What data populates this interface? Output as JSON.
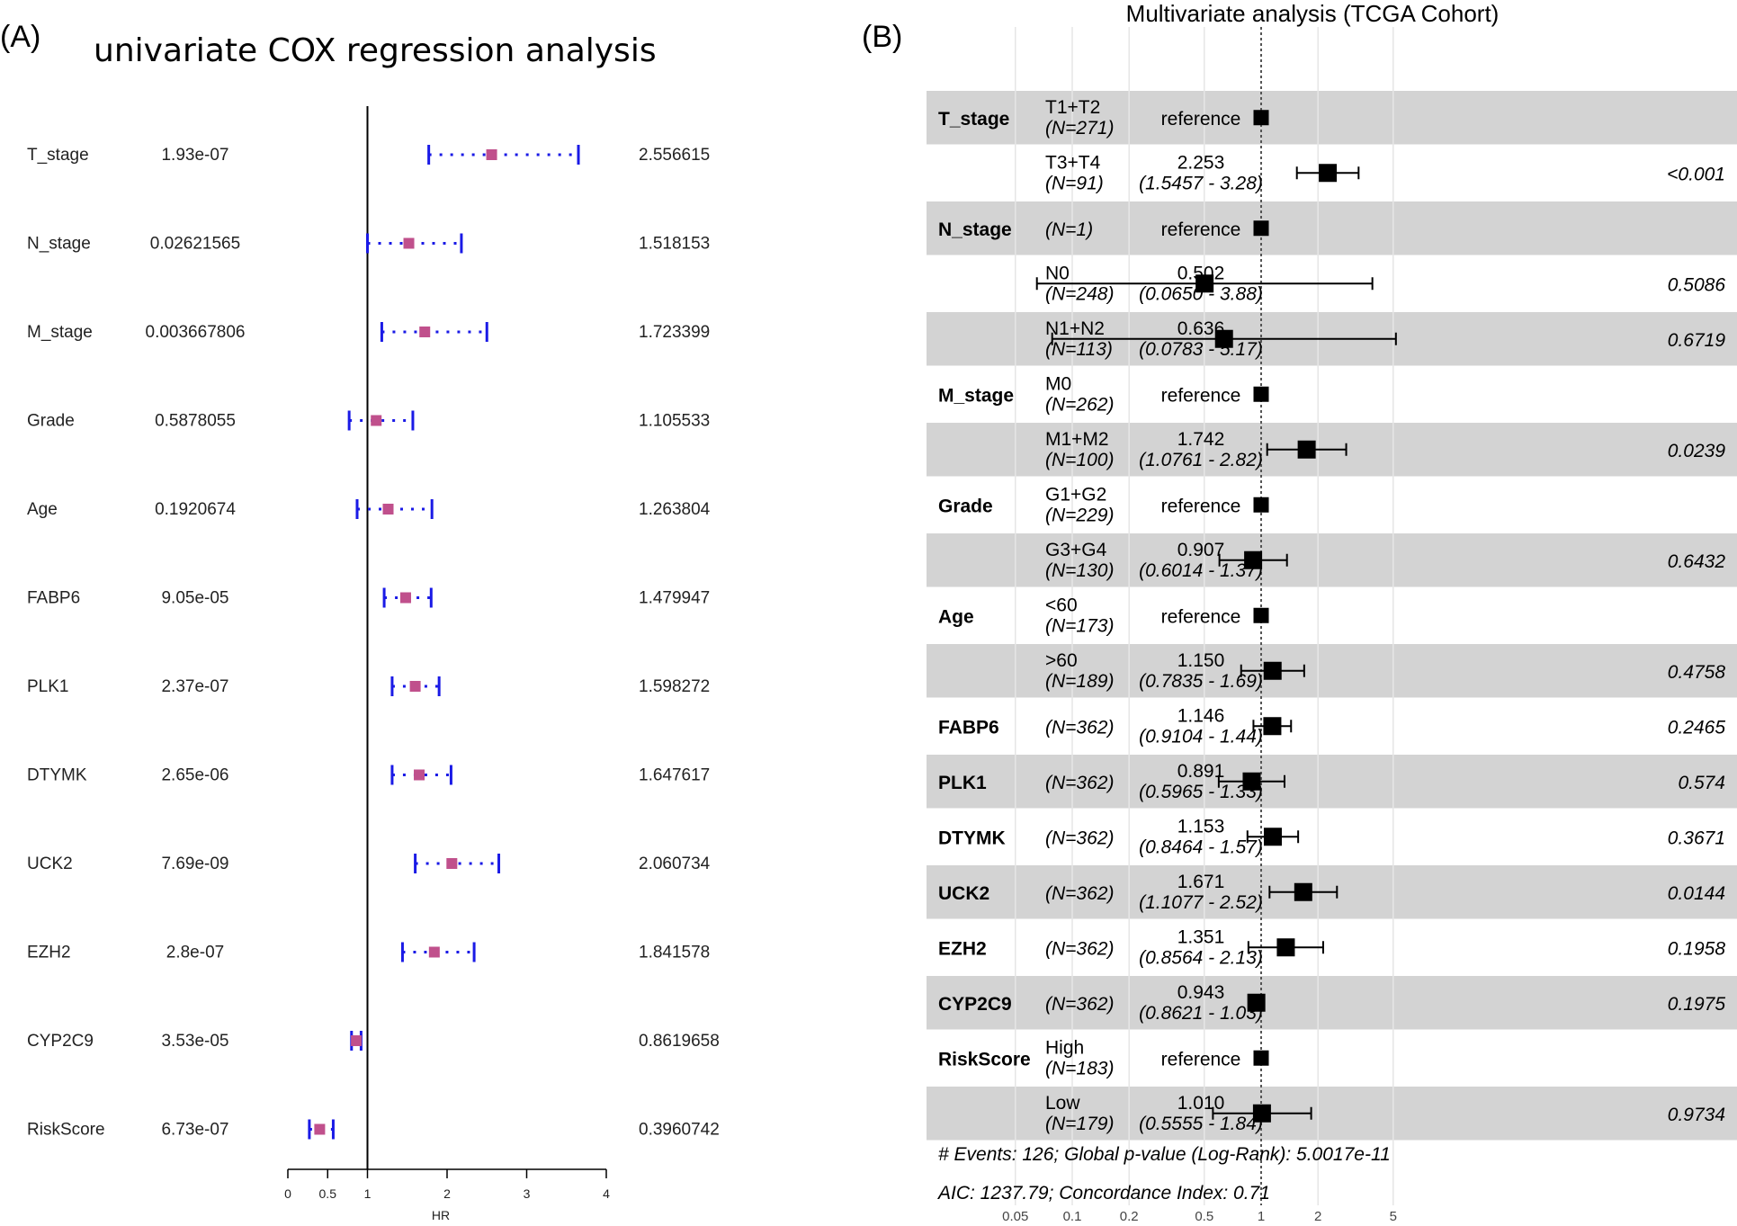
{
  "panel_a": {
    "label": "(A)",
    "title": "univariate COX regression analysis",
    "axis_label": "HR",
    "ticks": [
      "0",
      "0.5",
      "1",
      "2",
      "3",
      "4"
    ],
    "colors": {
      "point": "#c0508c",
      "ci": "#1a1ae6",
      "axis": "#000000"
    }
  },
  "panel_b": {
    "label": "(B)",
    "title": "Multivariate analysis (TCGA Cohort)",
    "ticks": [
      "0.05",
      "0.1",
      "0.2",
      "0.5",
      "1",
      "2",
      "5"
    ],
    "footer1": "# Events: 126; Global p-value (Log-Rank): 5.0017e-11",
    "footer2": "AIC: 1237.79; Concordance Index: 0.71",
    "colors": {
      "band": "#d3d3d3",
      "point": "#000000",
      "grid": "#e6e6e6"
    }
  },
  "chart_data": [
    {
      "type": "forest",
      "title": "univariate COX regression analysis",
      "xlabel": "HR",
      "xlim": [
        0,
        4
      ],
      "rows": [
        {
          "name": "T_stage",
          "pvalue": "1.93e-07",
          "hr_text": "2.556615",
          "hr": 2.56,
          "lo": 1.77,
          "hi": 3.65
        },
        {
          "name": "N_stage",
          "pvalue": "0.02621565",
          "hr_text": "1.518153",
          "hr": 1.52,
          "lo": 1.0,
          "hi": 2.18
        },
        {
          "name": "M_stage",
          "pvalue": "0.003667806",
          "hr_text": "1.723399",
          "hr": 1.72,
          "lo": 1.18,
          "hi": 2.5
        },
        {
          "name": "Grade",
          "pvalue": "0.5878055",
          "hr_text": "1.105533",
          "hr": 1.11,
          "lo": 0.77,
          "hi": 1.57
        },
        {
          "name": "Age",
          "pvalue": "0.1920674",
          "hr_text": "1.263804",
          "hr": 1.26,
          "lo": 0.87,
          "hi": 1.81
        },
        {
          "name": "FABP6",
          "pvalue": "9.05e-05",
          "hr_text": "1.479947",
          "hr": 1.48,
          "lo": 1.21,
          "hi": 1.8
        },
        {
          "name": "PLK1",
          "pvalue": "2.37e-07",
          "hr_text": "1.598272",
          "hr": 1.6,
          "lo": 1.31,
          "hi": 1.9
        },
        {
          "name": "DTYMK",
          "pvalue": "2.65e-06",
          "hr_text": "1.647617",
          "hr": 1.65,
          "lo": 1.31,
          "hi": 2.05
        },
        {
          "name": "UCK2",
          "pvalue": "7.69e-09",
          "hr_text": "2.060734",
          "hr": 2.06,
          "lo": 1.6,
          "hi": 2.65
        },
        {
          "name": "EZH2",
          "pvalue": "2.8e-07",
          "hr_text": "1.841578",
          "hr": 1.84,
          "lo": 1.44,
          "hi": 2.34
        },
        {
          "name": "CYP2C9",
          "pvalue": "3.53e-05",
          "hr_text": "0.8619658",
          "hr": 0.86,
          "lo": 0.8,
          "hi": 0.92
        },
        {
          "name": "RiskScore",
          "pvalue": "6.73e-07",
          "hr_text": "0.3960742",
          "hr": 0.4,
          "lo": 0.27,
          "hi": 0.57
        }
      ]
    },
    {
      "type": "forest",
      "title": "Multivariate analysis (TCGA Cohort)",
      "xscale": "log",
      "xlim": [
        0.04,
        8
      ],
      "reference_line": 1,
      "rows": [
        {
          "variable": "T_stage",
          "level": "T1+T2",
          "n": "(N=271)",
          "est": "reference",
          "ci": "",
          "p": "",
          "hr": 1,
          "lo": null,
          "hi": null
        },
        {
          "variable": "",
          "level": "T3+T4",
          "n": "(N=91)",
          "est": "2.253",
          "ci": "(1.5457 - 3.28)",
          "p": "<0.001",
          "hr": 2.253,
          "lo": 1.5457,
          "hi": 3.28
        },
        {
          "variable": "N_stage",
          "level": "",
          "n": "(N=1)",
          "est": "reference",
          "ci": "",
          "p": "",
          "hr": 1,
          "lo": null,
          "hi": null
        },
        {
          "variable": "",
          "level": "N0",
          "n": "(N=248)",
          "est": "0.502",
          "ci": "(0.0650 - 3.88)",
          "p": "0.5086",
          "hr": 0.502,
          "lo": 0.065,
          "hi": 3.88
        },
        {
          "variable": "",
          "level": "N1+N2",
          "n": "(N=113)",
          "est": "0.636",
          "ci": "(0.0783 - 5.17)",
          "p": "0.6719",
          "hr": 0.636,
          "lo": 0.0783,
          "hi": 5.17
        },
        {
          "variable": "M_stage",
          "level": "M0",
          "n": "(N=262)",
          "est": "reference",
          "ci": "",
          "p": "",
          "hr": 1,
          "lo": null,
          "hi": null
        },
        {
          "variable": "",
          "level": "M1+M2",
          "n": "(N=100)",
          "est": "1.742",
          "ci": "(1.0761 - 2.82)",
          "p": "0.0239",
          "hr": 1.742,
          "lo": 1.0761,
          "hi": 2.82
        },
        {
          "variable": "Grade",
          "level": "G1+G2",
          "n": "(N=229)",
          "est": "reference",
          "ci": "",
          "p": "",
          "hr": 1,
          "lo": null,
          "hi": null
        },
        {
          "variable": "",
          "level": "G3+G4",
          "n": "(N=130)",
          "est": "0.907",
          "ci": "(0.6014 - 1.37)",
          "p": "0.6432",
          "hr": 0.907,
          "lo": 0.6014,
          "hi": 1.37
        },
        {
          "variable": "Age",
          "level": "<60",
          "n": "(N=173)",
          "est": "reference",
          "ci": "",
          "p": "",
          "hr": 1,
          "lo": null,
          "hi": null
        },
        {
          "variable": "",
          "level": ">60",
          "n": "(N=189)",
          "est": "1.150",
          "ci": "(0.7835 - 1.69)",
          "p": "0.4758",
          "hr": 1.15,
          "lo": 0.7835,
          "hi": 1.69
        },
        {
          "variable": "FABP6",
          "level": "",
          "n": "(N=362)",
          "est": "1.146",
          "ci": "(0.9104 - 1.44)",
          "p": "0.2465",
          "hr": 1.146,
          "lo": 0.9104,
          "hi": 1.44
        },
        {
          "variable": "PLK1",
          "level": "",
          "n": "(N=362)",
          "est": "0.891",
          "ci": "(0.5965 - 1.33)",
          "p": "0.574",
          "hr": 0.891,
          "lo": 0.5965,
          "hi": 1.33
        },
        {
          "variable": "DTYMK",
          "level": "",
          "n": "(N=362)",
          "est": "1.153",
          "ci": "(0.8464 - 1.57)",
          "p": "0.3671",
          "hr": 1.153,
          "lo": 0.8464,
          "hi": 1.57
        },
        {
          "variable": "UCK2",
          "level": "",
          "n": "(N=362)",
          "est": "1.671",
          "ci": "(1.1077 - 2.52)",
          "p": "0.0144",
          "hr": 1.671,
          "lo": 1.1077,
          "hi": 2.52
        },
        {
          "variable": "EZH2",
          "level": "",
          "n": "(N=362)",
          "est": "1.351",
          "ci": "(0.8564 - 2.13)",
          "p": "0.1958",
          "hr": 1.351,
          "lo": 0.8564,
          "hi": 2.13
        },
        {
          "variable": "CYP2C9",
          "level": "",
          "n": "(N=362)",
          "est": "0.943",
          "ci": "(0.8621 - 1.03)",
          "p": "0.1975",
          "hr": 0.943,
          "lo": 0.8621,
          "hi": 1.03
        },
        {
          "variable": "RiskScore",
          "level": "High",
          "n": "(N=183)",
          "est": "reference",
          "ci": "",
          "p": "",
          "hr": 1,
          "lo": null,
          "hi": null
        },
        {
          "variable": "",
          "level": "Low",
          "n": "(N=179)",
          "est": "1.010",
          "ci": "(0.5555 - 1.84)",
          "p": "0.9734",
          "hr": 1.01,
          "lo": 0.5555,
          "hi": 1.84
        }
      ]
    }
  ]
}
